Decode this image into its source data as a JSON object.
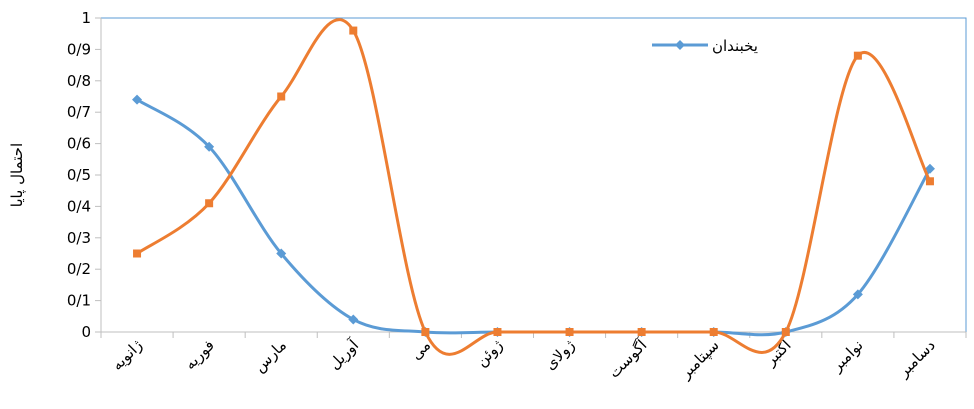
{
  "chart_data": {
    "type": "line",
    "categories": [
      "ژانویه",
      "فوریه",
      "مارس",
      "آوریل",
      "می",
      "ژوئن",
      "ژولای",
      "آگوست",
      "سپتامبر",
      "اکتبر",
      "نوامبر",
      "دسامبر"
    ],
    "series": [
      {
        "name": "یخبندان",
        "color": "#5B9BD5",
        "marker": "diamond",
        "values": [
          0.74,
          0.59,
          0.25,
          0.04,
          0.0,
          0.0,
          0.0,
          0.0,
          0.0,
          0.0,
          0.12,
          0.52
        ]
      },
      {
        "color": "#ED7D31",
        "marker": "square",
        "values": [
          0.25,
          0.41,
          0.75,
          0.96,
          0.0,
          0.0,
          0.0,
          0.0,
          0.0,
          0.0,
          0.88,
          0.48
        ]
      }
    ],
    "ylabel": "احتمال پایا",
    "ylim": [
      0,
      1
    ],
    "yticks": [
      "0",
      "0/1",
      "0/2",
      "0/3",
      "0/4",
      "0/5",
      "0/6",
      "0/7",
      "0/8",
      "0/9",
      "1"
    ],
    "smooth": true,
    "legend": "top-right",
    "grid": false
  }
}
